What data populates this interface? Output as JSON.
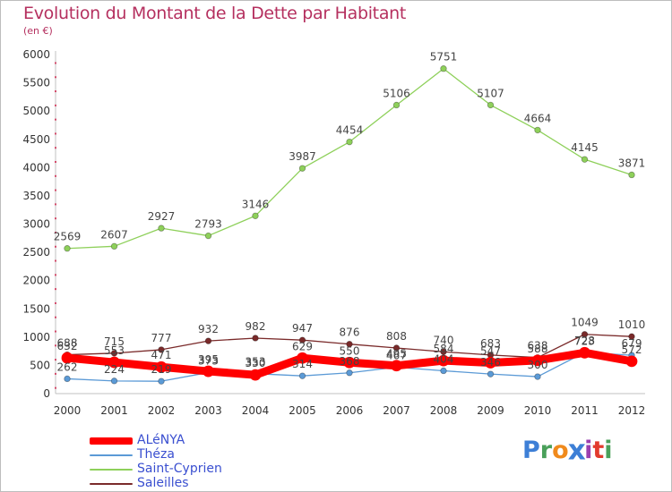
{
  "title": "Evolution du Montant de la Dette par Habitant",
  "subtitle": "(en €)",
  "logo": {
    "letters": [
      "P",
      "r",
      "o",
      "x",
      "i",
      "t",
      "i"
    ],
    "colors": [
      "#3d7fd6",
      "#4aa05a",
      "#f08a1c",
      "#3d7fd6",
      "#9a3fb0",
      "#e23b2e",
      "#4aa05a"
    ]
  },
  "chart_data": {
    "type": "line",
    "title": "Evolution du Montant de la Dette par Habitant",
    "ylabel": "(en €)",
    "xlabel": "",
    "ylim": [
      0,
      6000
    ],
    "yticks": [
      0,
      500,
      1000,
      1500,
      2000,
      2500,
      3000,
      3500,
      4000,
      4500,
      5000,
      5500,
      6000
    ],
    "x": [
      "2000",
      "2001",
      "2002",
      "2003",
      "2004",
      "2005",
      "2006",
      "2007",
      "2008",
      "2009",
      "2010",
      "2011",
      "2012"
    ],
    "grid": false,
    "legend_position": "bottom-left",
    "series": [
      {
        "name": "ALéNYA",
        "color": "#ff0000",
        "values": [
          632,
          553,
          471,
          395,
          330,
          629,
          550,
          495,
          584,
          547,
          588,
          723,
          572
        ]
      },
      {
        "name": "Théza",
        "color": "#5b9ad6",
        "values": [
          262,
          224,
          219,
          373,
          353,
          314,
          368,
          467,
          404,
          346,
          300,
          728,
          679
        ]
      },
      {
        "name": "Saint-Cyprien",
        "color": "#8ed05a",
        "values": [
          2569,
          2607,
          2927,
          2793,
          3146,
          3987,
          4454,
          5106,
          5751,
          5107,
          4664,
          4145,
          3871
        ]
      },
      {
        "name": "Saleilles",
        "color": "#7a2a2a",
        "values": [
          688,
          715,
          777,
          932,
          982,
          947,
          876,
          808,
          740,
          683,
          638,
          1049,
          1010
        ]
      }
    ]
  }
}
